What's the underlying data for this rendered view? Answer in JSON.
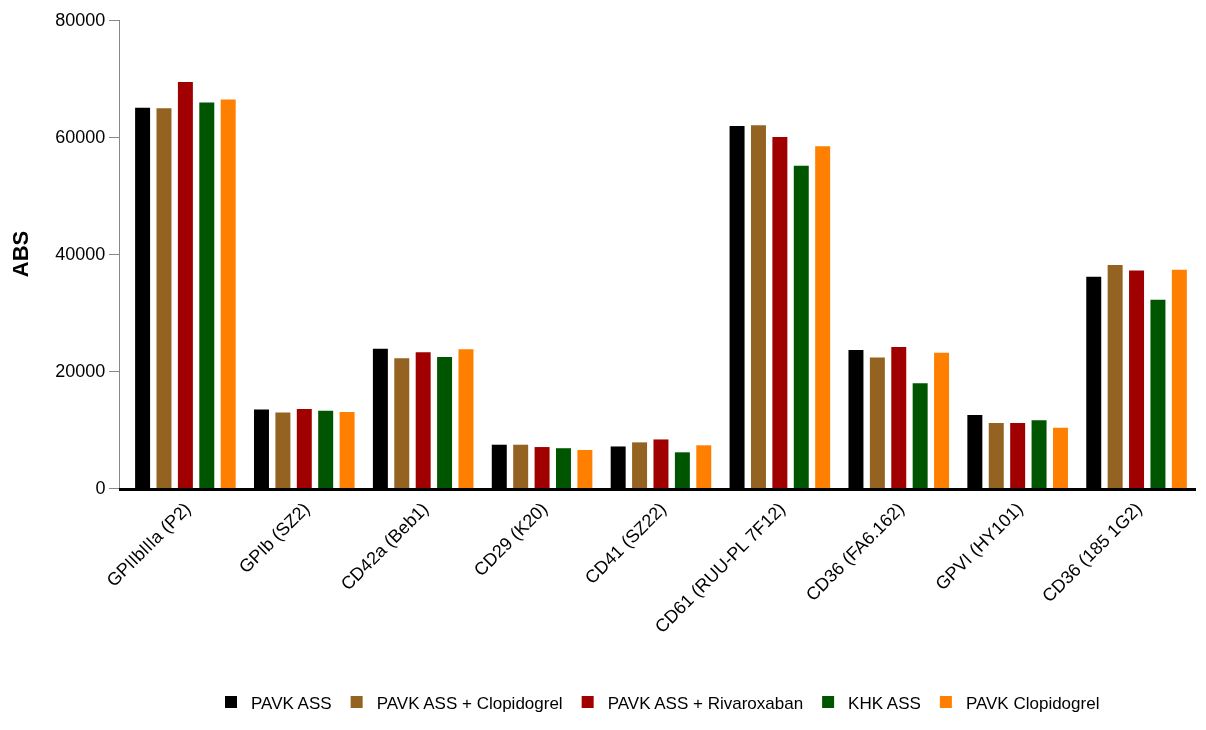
{
  "chart_data": {
    "type": "bar",
    "ylabel": "ABS",
    "categories": [
      "GPIIbIIIa (P2)",
      "GPIb (SZ2)",
      "CD42a (Beb1)",
      "CD29 (K20)",
      "CD41 (SZ22)",
      "CD61 (RUU-PL 7F12)",
      "CD36 (FA6.162)",
      "GPVI (HY101)",
      "CD36 (185 1G2)"
    ],
    "series": [
      {
        "name": "PAVK ASS",
        "color": "#000000",
        "values": [
          65000,
          13400,
          23800,
          7400,
          7100,
          61900,
          23600,
          12500,
          36100
        ]
      },
      {
        "name": "PAVK ASS + Clopidogrel",
        "color": "#956321",
        "values": [
          64900,
          12900,
          22200,
          7400,
          7800,
          62000,
          22300,
          11100,
          38100
        ]
      },
      {
        "name": "PAVK ASS + Rivaroxaban",
        "color": "#a00000",
        "values": [
          69400,
          13500,
          23200,
          7000,
          8300,
          60000,
          24100,
          11100,
          37200
        ]
      },
      {
        "name": "KHK ASS",
        "color": "#005500",
        "values": [
          65900,
          13200,
          22400,
          6800,
          6100,
          55100,
          17900,
          11600,
          32200
        ]
      },
      {
        "name": "PAVK Clopidogrel",
        "color": "#ff8000",
        "values": [
          66400,
          13000,
          23700,
          6500,
          7300,
          58400,
          23100,
          10300,
          37300
        ]
      }
    ],
    "ylim": [
      0,
      80000
    ],
    "yticks": [
      0,
      20000,
      40000,
      60000,
      80000
    ],
    "legend": "bottom"
  }
}
